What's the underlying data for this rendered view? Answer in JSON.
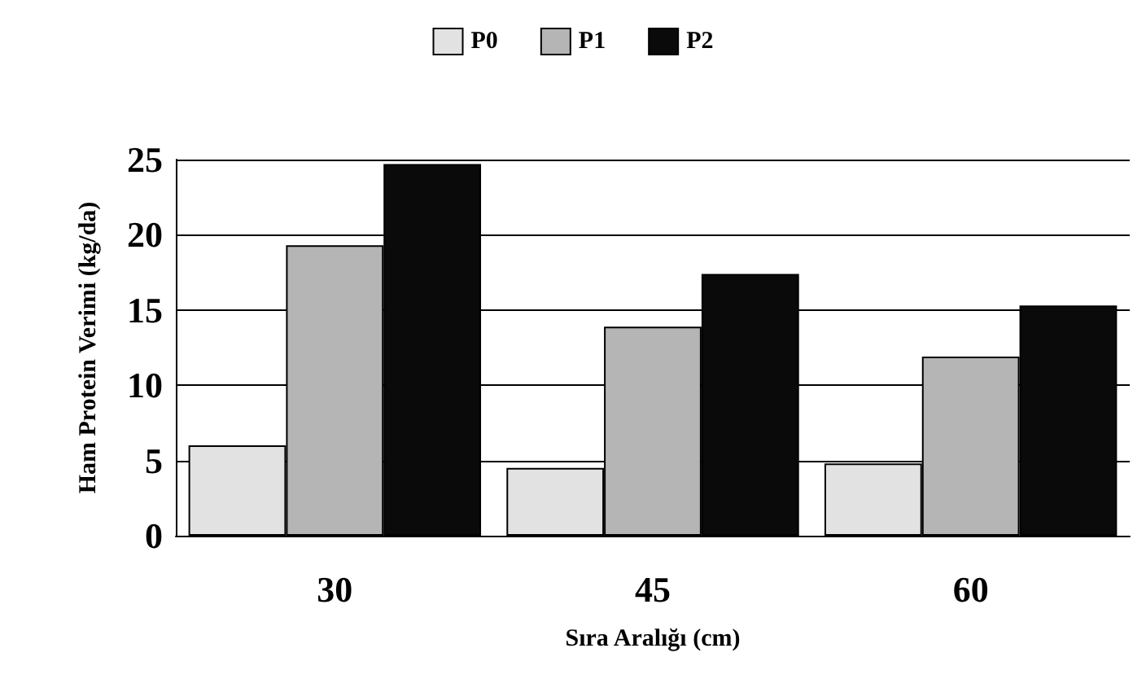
{
  "chart_data": {
    "type": "bar",
    "xlabel": "Sıra Aralığı (cm)",
    "ylabel": "Ham Protein Verimi (kg/da)",
    "categories": [
      "30",
      "45",
      "60"
    ],
    "series": [
      {
        "name": "P0",
        "color": "#e2e2e2",
        "values": [
          6.0,
          4.5,
          4.8
        ]
      },
      {
        "name": "P1",
        "color": "#b5b5b5",
        "values": [
          19.3,
          13.9,
          11.9
        ]
      },
      {
        "name": "P2",
        "color": "#0a0a0a",
        "values": [
          24.7,
          17.4,
          15.3
        ]
      }
    ],
    "ylim": [
      0,
      25
    ],
    "yticks": [
      0,
      5,
      10,
      15,
      20,
      25
    ],
    "grid": "y",
    "legend": "top"
  }
}
